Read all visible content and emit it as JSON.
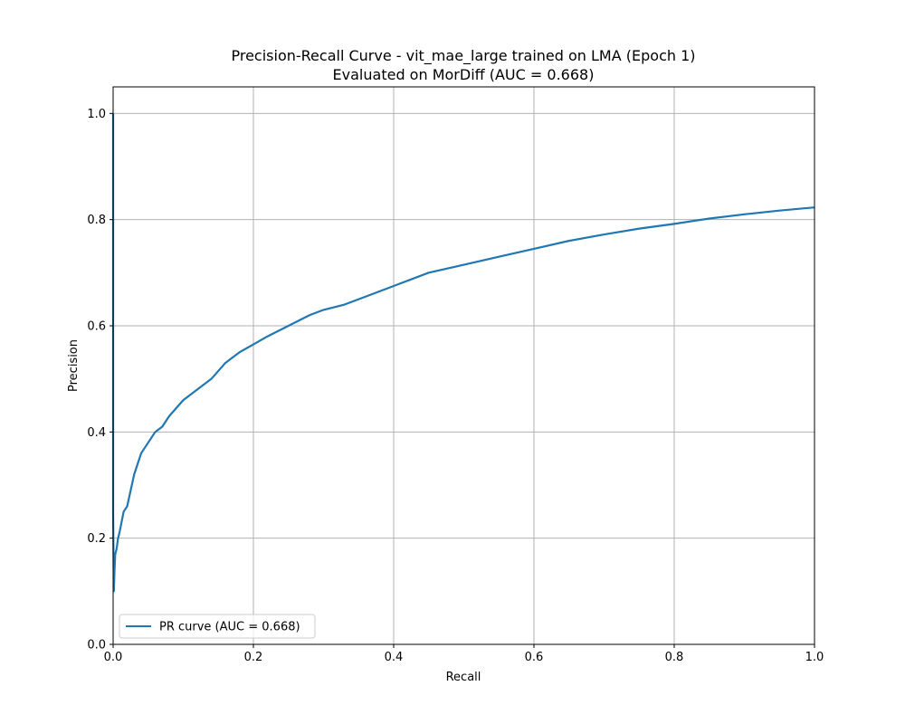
{
  "chart_data": {
    "type": "line",
    "title": "Precision-Recall Curve - vit_mae_large trained on LMA (Epoch 1)",
    "subtitle": "Evaluated on MorDiff (AUC = 0.668)",
    "xlabel": "Recall",
    "ylabel": "Precision",
    "xlim": [
      0.0,
      1.0
    ],
    "ylim": [
      0.0,
      1.05
    ],
    "xticks": [
      "0.0",
      "0.2",
      "0.4",
      "0.6",
      "0.8",
      "1.0"
    ],
    "yticks": [
      "0.0",
      "0.2",
      "0.4",
      "0.6",
      "0.8",
      "1.0"
    ],
    "grid": true,
    "legend_position": "lower-left",
    "series": [
      {
        "name": "PR curve (AUC = 0.668)",
        "color": "#1f77b4",
        "x": [
          0.0,
          0.0,
          0.001,
          0.002,
          0.003,
          0.005,
          0.007,
          0.009,
          0.012,
          0.015,
          0.02,
          0.025,
          0.03,
          0.035,
          0.04,
          0.05,
          0.06,
          0.07,
          0.08,
          0.1,
          0.12,
          0.14,
          0.16,
          0.18,
          0.2,
          0.22,
          0.25,
          0.28,
          0.3,
          0.33,
          0.36,
          0.4,
          0.45,
          0.5,
          0.55,
          0.6,
          0.65,
          0.7,
          0.75,
          0.8,
          0.85,
          0.9,
          0.95,
          1.0
        ],
        "y": [
          1.0,
          0.25,
          0.1,
          0.14,
          0.17,
          0.18,
          0.2,
          0.21,
          0.23,
          0.25,
          0.26,
          0.29,
          0.32,
          0.34,
          0.36,
          0.38,
          0.4,
          0.41,
          0.43,
          0.46,
          0.48,
          0.5,
          0.53,
          0.55,
          0.565,
          0.58,
          0.6,
          0.62,
          0.63,
          0.64,
          0.655,
          0.675,
          0.7,
          0.715,
          0.73,
          0.745,
          0.76,
          0.772,
          0.783,
          0.792,
          0.802,
          0.81,
          0.817,
          0.823
        ]
      }
    ]
  }
}
